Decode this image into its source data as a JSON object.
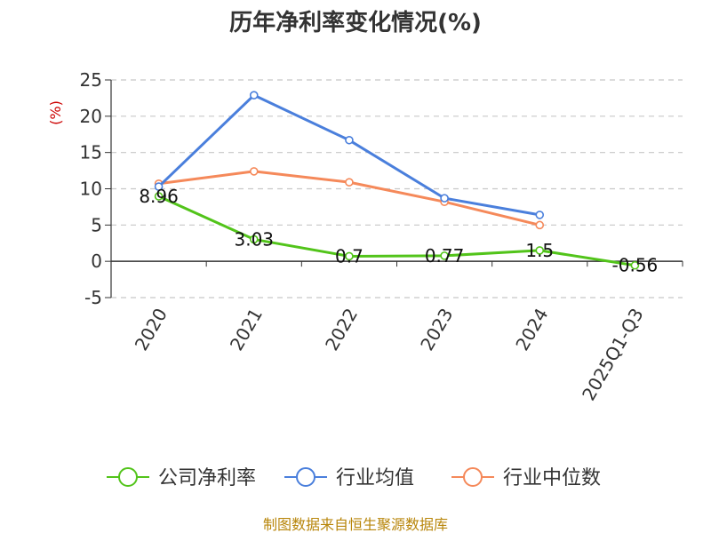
{
  "chart_data": {
    "type": "line",
    "title": "历年净利率变化情况(%)",
    "ylabel": "(%)",
    "categories": [
      "2020",
      "2021",
      "2022",
      "2023",
      "2024",
      "2025Q1-Q3"
    ],
    "yticks": [
      "25",
      "20",
      "15",
      "10",
      "5",
      "0",
      "-5"
    ],
    "ylim": [
      -5,
      25
    ],
    "grid": true,
    "legend_position": "bottom",
    "series": [
      {
        "name": "公司净利率",
        "color": "#52c41a",
        "values": [
          8.96,
          3.03,
          0.7,
          0.77,
          1.5,
          -0.56
        ],
        "labels": [
          "8.96",
          "3.03",
          "0.7",
          "0.77",
          "1.5",
          "-0.56"
        ]
      },
      {
        "name": "行业均值",
        "color": "#4a7fdc",
        "values": [
          10.3,
          22.9,
          16.7,
          8.7,
          6.4,
          null
        ]
      },
      {
        "name": "行业中位数",
        "color": "#f5895a",
        "values": [
          10.7,
          12.4,
          10.9,
          8.2,
          5.0,
          null
        ]
      }
    ]
  },
  "footer": {
    "source": "制图数据来自恒生聚源数据库"
  }
}
